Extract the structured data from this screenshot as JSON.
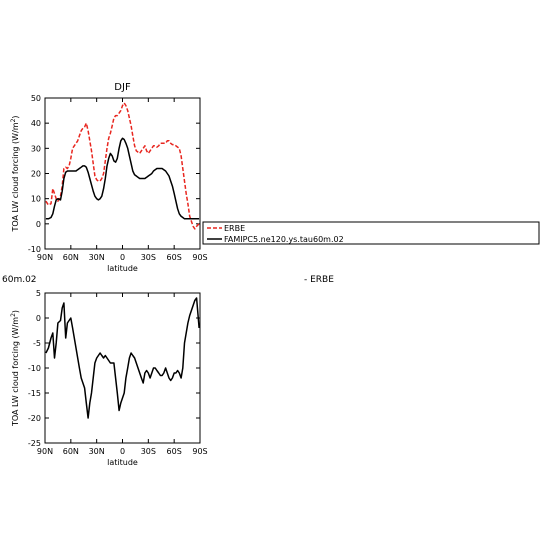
{
  "chart_data": [
    {
      "type": "line",
      "title": "DJF",
      "xlabel": "latitude",
      "ylabel": "TOA LW cloud forcing (W/m",
      "ylabel_sup": "2",
      "ylabel_close": ")",
      "xlim": [
        90,
        -90
      ],
      "ylim": [
        -10,
        50
      ],
      "xticks": [
        90,
        60,
        30,
        0,
        -30,
        -60,
        -90
      ],
      "xtick_labels": [
        "90N",
        "60N",
        "30N",
        "0",
        "30S",
        "60S",
        "90S"
      ],
      "yticks": [
        -10,
        0,
        10,
        20,
        30,
        40,
        50
      ],
      "ytick_labels": [
        "-10",
        "0",
        "10",
        "20",
        "30",
        "40",
        "50"
      ],
      "legend": {
        "placement": "right",
        "entries": [
          "ERBE",
          "FAMIPC5.ne120.ys.tau60m.02"
        ]
      },
      "colors": {
        "ERBE": "#e8261f",
        "model": "#000000"
      },
      "series": [
        {
          "name": "ERBE",
          "style": "dashed-red",
          "x": [
            89,
            86,
            83,
            81,
            79,
            77,
            75,
            72,
            70,
            68,
            66,
            64,
            62,
            60,
            58,
            56,
            54,
            52,
            50,
            48,
            46,
            44,
            42,
            40,
            38,
            36,
            34,
            32,
            30,
            28,
            26,
            24,
            22,
            20,
            18,
            16,
            14,
            12,
            10,
            8,
            6,
            4,
            2,
            0,
            -2,
            -4,
            -6,
            -8,
            -10,
            -12,
            -14,
            -16,
            -18,
            -20,
            -22,
            -24,
            -26,
            -28,
            -30,
            -32,
            -34,
            -36,
            -38,
            -40,
            -42,
            -44,
            -46,
            -48,
            -50,
            -52,
            -54,
            -56,
            -58,
            -60,
            -62,
            -64,
            -66,
            -68,
            -70,
            -72,
            -74,
            -76,
            -78,
            -80,
            -82,
            -84,
            -86,
            -89
          ],
          "y": [
            9,
            7.5,
            8,
            14,
            12,
            10,
            9,
            11,
            15,
            22,
            22.5,
            22,
            23,
            26,
            30,
            31,
            32,
            33,
            35,
            37,
            38,
            38.5,
            40,
            37,
            33,
            29,
            24,
            19,
            17.5,
            17,
            17,
            18,
            20,
            25,
            30,
            34,
            36,
            39,
            42,
            43,
            43,
            44,
            45,
            47,
            48,
            47,
            45,
            42,
            39,
            35,
            31,
            29,
            28.5,
            28,
            29,
            30,
            31,
            29,
            28,
            29,
            30,
            31,
            31,
            30.5,
            31,
            32,
            32,
            32,
            32,
            33,
            33,
            32,
            31.5,
            31.5,
            31,
            30.5,
            30,
            27,
            22,
            17,
            12,
            8,
            3,
            1,
            -1,
            -2,
            -1,
            0
          ]
        },
        {
          "name": "FAMIPC5.ne120.ys.tau60m.02",
          "style": "solid-black",
          "x": [
            89,
            86,
            83,
            81,
            79,
            77,
            75,
            72,
            70,
            68,
            66,
            64,
            62,
            60,
            58,
            56,
            54,
            52,
            50,
            48,
            46,
            44,
            42,
            40,
            38,
            36,
            34,
            32,
            30,
            28,
            26,
            24,
            22,
            20,
            18,
            16,
            14,
            12,
            10,
            8,
            6,
            4,
            2,
            0,
            -2,
            -4,
            -6,
            -8,
            -10,
            -12,
            -14,
            -16,
            -18,
            -20,
            -22,
            -24,
            -26,
            -28,
            -30,
            -32,
            -34,
            -36,
            -38,
            -40,
            -42,
            -44,
            -46,
            -48,
            -50,
            -52,
            -54,
            -56,
            -58,
            -60,
            -62,
            -64,
            -66,
            -68,
            -70,
            -72,
            -74,
            -76,
            -78,
            -80,
            -82,
            -84,
            -86,
            -89
          ],
          "y": [
            2,
            2,
            2.5,
            4,
            7,
            9.5,
            10,
            9.5,
            13,
            18,
            20.5,
            21,
            21,
            21,
            21,
            21,
            21,
            21.5,
            22,
            22.5,
            23,
            23,
            22.5,
            20.5,
            18,
            15.5,
            13,
            11,
            10,
            9.5,
            10,
            11,
            14,
            18,
            23,
            26,
            28,
            27,
            25,
            24.5,
            26,
            30,
            33,
            34,
            33.5,
            32,
            30,
            27,
            24,
            21,
            19.5,
            19,
            18.5,
            18,
            18,
            18,
            18,
            18.5,
            19,
            19.5,
            20,
            21,
            21.5,
            22,
            22,
            22,
            22,
            21.5,
            21,
            20,
            19,
            17,
            15,
            12,
            9,
            6,
            4,
            3,
            2.5,
            2,
            2,
            2,
            2,
            2,
            2,
            2,
            2,
            2
          ]
        }
      ]
    },
    {
      "type": "line",
      "title": "",
      "title_left_fragment": "60m.02",
      "title_right_fragment": "- ERBE",
      "xlabel": "latitude",
      "ylabel": "TOA LW cloud forcing (W/m",
      "ylabel_sup": "2",
      "ylabel_close": ")",
      "xlim": [
        90,
        -90
      ],
      "ylim": [
        -25,
        5
      ],
      "xticks": [
        90,
        60,
        30,
        0,
        -30,
        -60,
        -90
      ],
      "xtick_labels": [
        "90N",
        "60N",
        "30N",
        "0",
        "30S",
        "60S",
        "90S"
      ],
      "yticks": [
        -25,
        -20,
        -15,
        -10,
        -5,
        0,
        5
      ],
      "ytick_labels": [
        "-25",
        "-20",
        "-15",
        "-10",
        "-5",
        "0",
        "5"
      ],
      "series": [
        {
          "name": "",
          "style": "solid-black",
          "x": [
            89,
            86,
            83,
            81,
            79,
            77,
            75,
            72,
            70,
            68,
            66,
            64,
            62,
            60,
            58,
            56,
            54,
            52,
            50,
            48,
            46,
            44,
            42,
            40,
            38,
            36,
            34,
            32,
            30,
            28,
            26,
            24,
            22,
            20,
            18,
            16,
            14,
            12,
            10,
            8,
            6,
            4,
            2,
            0,
            -2,
            -4,
            -6,
            -8,
            -10,
            -12,
            -14,
            -16,
            -18,
            -20,
            -22,
            -24,
            -26,
            -28,
            -30,
            -32,
            -34,
            -36,
            -38,
            -40,
            -42,
            -44,
            -46,
            -48,
            -50,
            -52,
            -54,
            -56,
            -58,
            -60,
            -62,
            -64,
            -66,
            -68,
            -70,
            -72,
            -74,
            -76,
            -78,
            -80,
            -82,
            -84,
            -86,
            -89
          ],
          "y": [
            -7,
            -6,
            -4,
            -3,
            -8,
            -5,
            -1,
            -0.5,
            2,
            3,
            -4,
            -1,
            -0.5,
            0,
            -2,
            -4,
            -6,
            -8,
            -10,
            -12,
            -13,
            -14,
            -17,
            -20,
            -17,
            -15,
            -12,
            -9,
            -8,
            -7.5,
            -7,
            -7.5,
            -8,
            -7.5,
            -8,
            -8.5,
            -9,
            -9,
            -9,
            -12,
            -15,
            -18.5,
            -17,
            -16,
            -15,
            -12,
            -10,
            -8,
            -7,
            -7.5,
            -8,
            -9,
            -10,
            -11,
            -12,
            -13,
            -11,
            -10.5,
            -11,
            -12,
            -11,
            -10,
            -10,
            -10.5,
            -11,
            -11.5,
            -11.5,
            -11,
            -10,
            -11,
            -12,
            -12.5,
            -12,
            -11,
            -11,
            -10.5,
            -11,
            -12,
            -10,
            -5,
            -3,
            -1,
            0.5,
            1.5,
            2.5,
            3.5,
            4,
            -2
          ]
        }
      ]
    }
  ]
}
